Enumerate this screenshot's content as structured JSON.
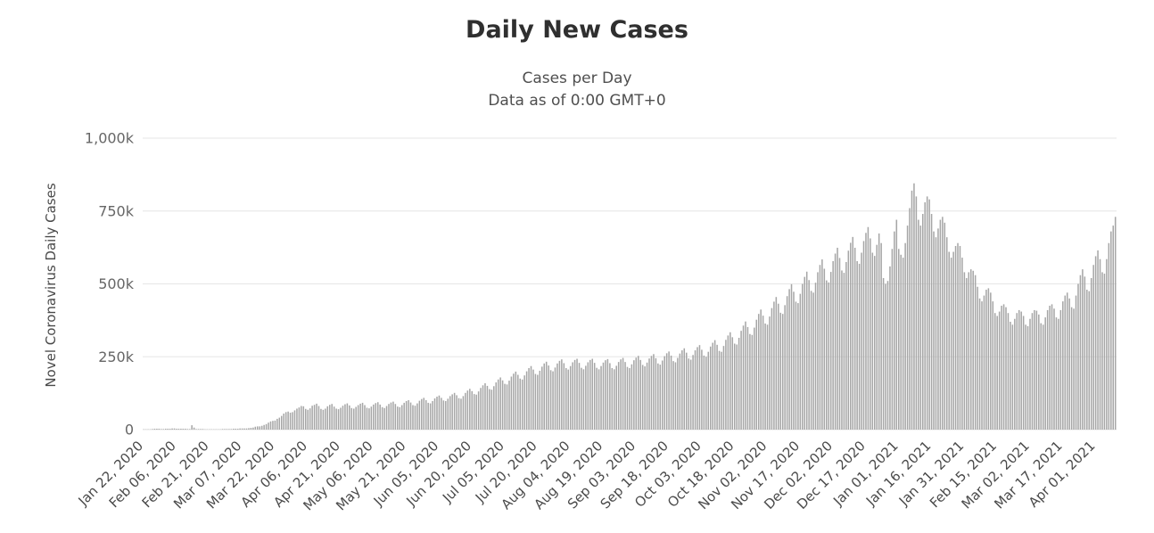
{
  "chart_data": {
    "type": "bar",
    "title": "Daily New Cases",
    "subtitle": [
      "Cases per Day",
      "Data as of 0:00 GMT+0"
    ],
    "ylabel": "Novel Coronavirus Daily Cases",
    "xlabel": "",
    "legend": "none",
    "grid": "horizontal",
    "background_color": "#ffffff",
    "bar_color": "#a6a6a6",
    "grid_color": "#e6e6e6",
    "y_tick_labels": [
      "0",
      "250k",
      "500k",
      "750k",
      "1,000k"
    ],
    "ylim_thousands": [
      0,
      1000
    ],
    "x_tick_interval_days": 15,
    "x_tick_labels": [
      "Jan 22, 2020",
      "Feb 06, 2020",
      "Feb 21, 2020",
      "Mar 07, 2020",
      "Mar 22, 2020",
      "Apr 06, 2020",
      "Apr 21, 2020",
      "May 06, 2020",
      "May 21, 2020",
      "Jun 05, 2020",
      "Jun 20, 2020",
      "Jul 05, 2020",
      "Jul 20, 2020",
      "Aug 04, 2020",
      "Aug 19, 2020",
      "Sep 03, 2020",
      "Sep 18, 2020",
      "Oct 03, 2020",
      "Oct 18, 2020",
      "Nov 02, 2020",
      "Nov 17, 2020",
      "Dec 02, 2020",
      "Dec 17, 2020",
      "Jan 01, 2021",
      "Jan 16, 2021",
      "Jan 31, 2021",
      "Feb 15, 2021",
      "Mar 02, 2021",
      "Mar 17, 2021",
      "Apr 01, 2021"
    ],
    "values_unit": "thousands_of_cases_per_day",
    "values_start_date": "Jan 22, 2020",
    "values_daily_thousands": [
      1,
      1,
      1,
      1,
      2,
      3,
      3,
      3,
      2,
      2,
      3,
      3,
      3,
      4,
      4,
      3,
      3,
      3,
      3,
      3,
      2,
      2,
      15,
      7,
      2,
      2,
      2,
      2,
      1,
      1,
      1,
      1,
      1,
      1,
      1,
      1,
      2,
      2,
      2,
      2,
      2,
      3,
      3,
      3,
      4,
      4,
      4,
      4,
      5,
      6,
      7,
      10,
      11,
      11,
      13,
      16,
      19,
      24,
      28,
      30,
      31,
      37,
      41,
      47,
      55,
      60,
      62,
      58,
      60,
      66,
      72,
      76,
      81,
      80,
      71,
      68,
      73,
      82,
      85,
      89,
      81,
      71,
      68,
      72,
      80,
      85,
      88,
      79,
      72,
      70,
      75,
      82,
      87,
      90,
      83,
      74,
      72,
      78,
      84,
      89,
      92,
      84,
      75,
      73,
      79,
      86,
      91,
      94,
      86,
      77,
      74,
      81,
      88,
      93,
      96,
      88,
      79,
      77,
      84,
      92,
      98,
      101,
      93,
      84,
      82,
      90,
      99,
      105,
      109,
      101,
      92,
      90,
      98,
      107,
      113,
      117,
      109,
      100,
      98,
      106,
      115,
      121,
      126,
      118,
      108,
      106,
      115,
      126,
      134,
      140,
      132,
      122,
      120,
      131,
      143,
      152,
      159,
      150,
      139,
      137,
      149,
      162,
      172,
      179,
      169,
      157,
      155,
      168,
      182,
      192,
      199,
      188,
      175,
      172,
      186,
      200,
      211,
      218,
      206,
      191,
      188,
      202,
      216,
      227,
      233,
      220,
      204,
      200,
      213,
      227,
      236,
      241,
      228,
      211,
      206,
      218,
      231,
      239,
      243,
      229,
      212,
      207,
      219,
      231,
      239,
      243,
      229,
      212,
      207,
      218,
      230,
      238,
      242,
      228,
      211,
      207,
      219,
      232,
      241,
      246,
      232,
      215,
      211,
      224,
      238,
      247,
      253,
      239,
      222,
      217,
      230,
      244,
      253,
      259,
      245,
      227,
      223,
      237,
      252,
      262,
      268,
      254,
      235,
      231,
      246,
      261,
      272,
      279,
      264,
      244,
      240,
      256,
      272,
      283,
      290,
      274,
      254,
      250,
      267,
      285,
      298,
      307,
      291,
      270,
      267,
      287,
      308,
      323,
      334,
      317,
      295,
      292,
      315,
      339,
      357,
      371,
      352,
      328,
      325,
      350,
      377,
      397,
      412,
      391,
      364,
      360,
      388,
      417,
      439,
      455,
      432,
      401,
      397,
      427,
      458,
      482,
      499,
      473,
      439,
      434,
      466,
      500,
      524,
      542,
      513,
      476,
      470,
      504,
      540,
      565,
      584,
      552,
      512,
      505,
      541,
      578,
      604,
      624,
      589,
      546,
      538,
      575,
      614,
      641,
      661,
      624,
      578,
      569,
      607,
      647,
      675,
      695,
      656,
      607,
      596,
      634,
      673,
      640,
      520,
      500,
      510,
      560,
      620,
      680,
      720,
      620,
      600,
      590,
      640,
      700,
      760,
      820,
      845,
      800,
      720,
      700,
      740,
      780,
      800,
      790,
      740,
      680,
      660,
      690,
      720,
      730,
      710,
      660,
      610,
      590,
      610,
      630,
      640,
      630,
      590,
      540,
      520,
      540,
      550,
      545,
      530,
      490,
      450,
      440,
      460,
      480,
      485,
      470,
      440,
      400,
      390,
      405,
      425,
      430,
      420,
      400,
      370,
      360,
      380,
      400,
      410,
      405,
      390,
      360,
      355,
      380,
      400,
      410,
      408,
      395,
      365,
      360,
      385,
      410,
      425,
      430,
      415,
      385,
      380,
      410,
      440,
      460,
      470,
      450,
      420,
      415,
      460,
      500,
      530,
      550,
      525,
      480,
      475,
      520,
      565,
      595,
      615,
      585,
      540,
      535,
      585,
      640,
      680,
      700,
      730
    ]
  }
}
